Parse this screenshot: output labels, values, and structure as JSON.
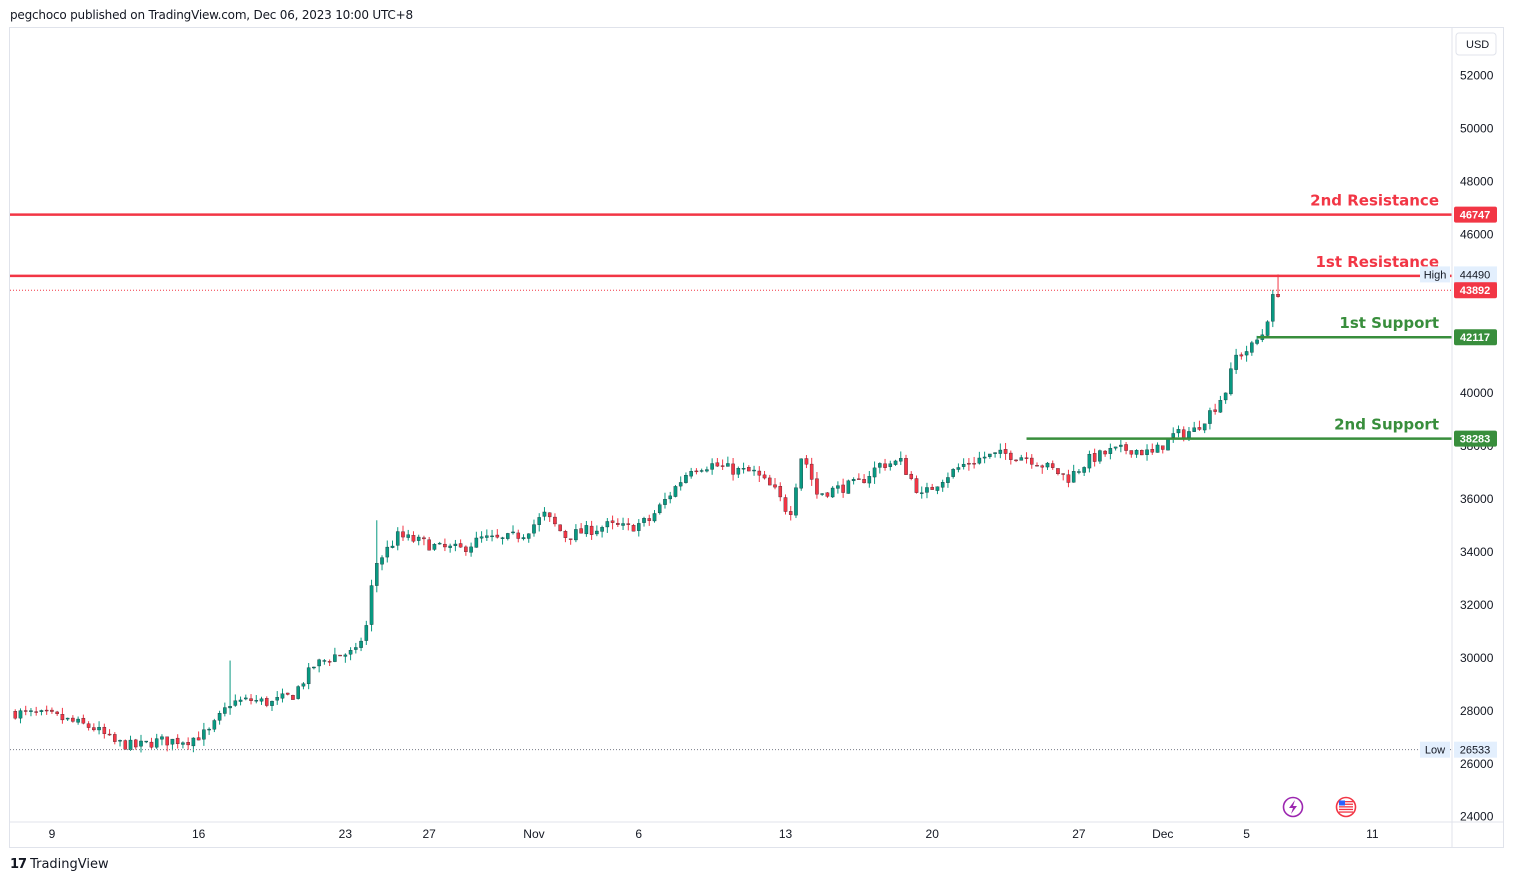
{
  "header": {
    "published_by": "pegchoco published on TradingView.com, Dec 06, 2023 10:00 UTC+8"
  },
  "footer": {
    "logo_glyph": "17",
    "brand": "TradingView"
  },
  "currency_label": "USD",
  "icons": {
    "flash": "lightning-icon",
    "flag": "us-flag-icon"
  },
  "colors": {
    "up": "#089981",
    "down": "#f23645",
    "resistance": "#f23645",
    "support": "#388e3c",
    "axis_text": "#131722",
    "grid_border": "#e0e3eb"
  },
  "chart_data": {
    "type": "candlestick",
    "title": "",
    "y_axis": {
      "ticks": [
        24000,
        26000,
        28000,
        30000,
        32000,
        34000,
        36000,
        38000,
        40000,
        42000,
        44000,
        46000,
        48000,
        50000,
        52000
      ],
      "ylim": [
        23800,
        53800
      ]
    },
    "x_axis": {
      "ticks": [
        {
          "label": "9",
          "day": 0
        },
        {
          "label": "16",
          "day": 7
        },
        {
          "label": "23",
          "day": 14
        },
        {
          "label": "27",
          "day": 18
        },
        {
          "label": "Nov",
          "day": 23
        },
        {
          "label": "6",
          "day": 28
        },
        {
          "label": "13",
          "day": 35
        },
        {
          "label": "20",
          "day": 42
        },
        {
          "label": "27",
          "day": 49
        },
        {
          "label": "Dec",
          "day": 53
        },
        {
          "label": "5",
          "day": 57
        },
        {
          "label": "11",
          "day": 63
        }
      ],
      "xlim_days": [
        -2,
        66.8
      ]
    },
    "price_path": [
      [
        -2,
        27950
      ],
      [
        0,
        27800
      ],
      [
        2,
        27350
      ],
      [
        3,
        26800
      ],
      [
        4,
        26650
      ],
      [
        5,
        26850
      ],
      [
        6.5,
        26900
      ],
      [
        7.5,
        27200
      ],
      [
        8.5,
        28300
      ],
      [
        9.5,
        28400
      ],
      [
        10.5,
        28300
      ],
      [
        11.5,
        28600
      ],
      [
        12.5,
        29700
      ],
      [
        13.5,
        30100
      ],
      [
        14.5,
        30200
      ],
      [
        15,
        31200
      ],
      [
        15.4,
        33500
      ],
      [
        16.5,
        34600
      ],
      [
        17.5,
        34400
      ],
      [
        18.5,
        34150
      ],
      [
        19.5,
        34100
      ],
      [
        20.5,
        34500
      ],
      [
        21.5,
        34450
      ],
      [
        22.5,
        34700
      ],
      [
        23.5,
        35400
      ],
      [
        24.5,
        34600
      ],
      [
        25.5,
        34800
      ],
      [
        26.5,
        35000
      ],
      [
        27.5,
        34900
      ],
      [
        28.5,
        35200
      ],
      [
        29.5,
        36200
      ],
      [
        30.5,
        37200
      ],
      [
        31.5,
        37300
      ],
      [
        32.5,
        37100
      ],
      [
        33.5,
        37000
      ],
      [
        34.5,
        36300
      ],
      [
        35.2,
        35400
      ],
      [
        35.8,
        37800
      ],
      [
        36.5,
        36200
      ],
      [
        37.5,
        36400
      ],
      [
        38.5,
        36600
      ],
      [
        39.5,
        37300
      ],
      [
        40.5,
        37400
      ],
      [
        41.5,
        36100
      ],
      [
        42.5,
        36800
      ],
      [
        43.5,
        37300
      ],
      [
        44.5,
        37600
      ],
      [
        45.5,
        37700
      ],
      [
        46.5,
        37600
      ],
      [
        47.5,
        37200
      ],
      [
        48.5,
        36800
      ],
      [
        49.5,
        37500
      ],
      [
        50.5,
        37800
      ],
      [
        51.5,
        37900
      ],
      [
        52.5,
        37700
      ],
      [
        53.5,
        38400
      ],
      [
        54.5,
        38600
      ],
      [
        55.5,
        39500
      ],
      [
        56,
        40100
      ],
      [
        56.5,
        41400
      ],
      [
        57.2,
        41700
      ],
      [
        57.8,
        42300
      ],
      [
        58.3,
        43700
      ],
      [
        58.7,
        43950
      ]
    ],
    "candle_interval_days": 0.25,
    "high": {
      "label": "High",
      "value": 44490
    },
    "low": {
      "label": "Low",
      "value": 26533
    },
    "last_price": {
      "value": 43892
    },
    "levels": [
      {
        "name": "2nd Resistance",
        "value": 46747,
        "kind": "resistance",
        "from_day": -2
      },
      {
        "name": "1st Resistance",
        "value": 44436,
        "kind": "resistance",
        "from_day": -2
      },
      {
        "name": "1st Support",
        "value": 42117,
        "kind": "support",
        "from_day": 57.5
      },
      {
        "name": "2nd Support",
        "value": 38283,
        "kind": "support",
        "from_day": 46.5
      }
    ]
  }
}
